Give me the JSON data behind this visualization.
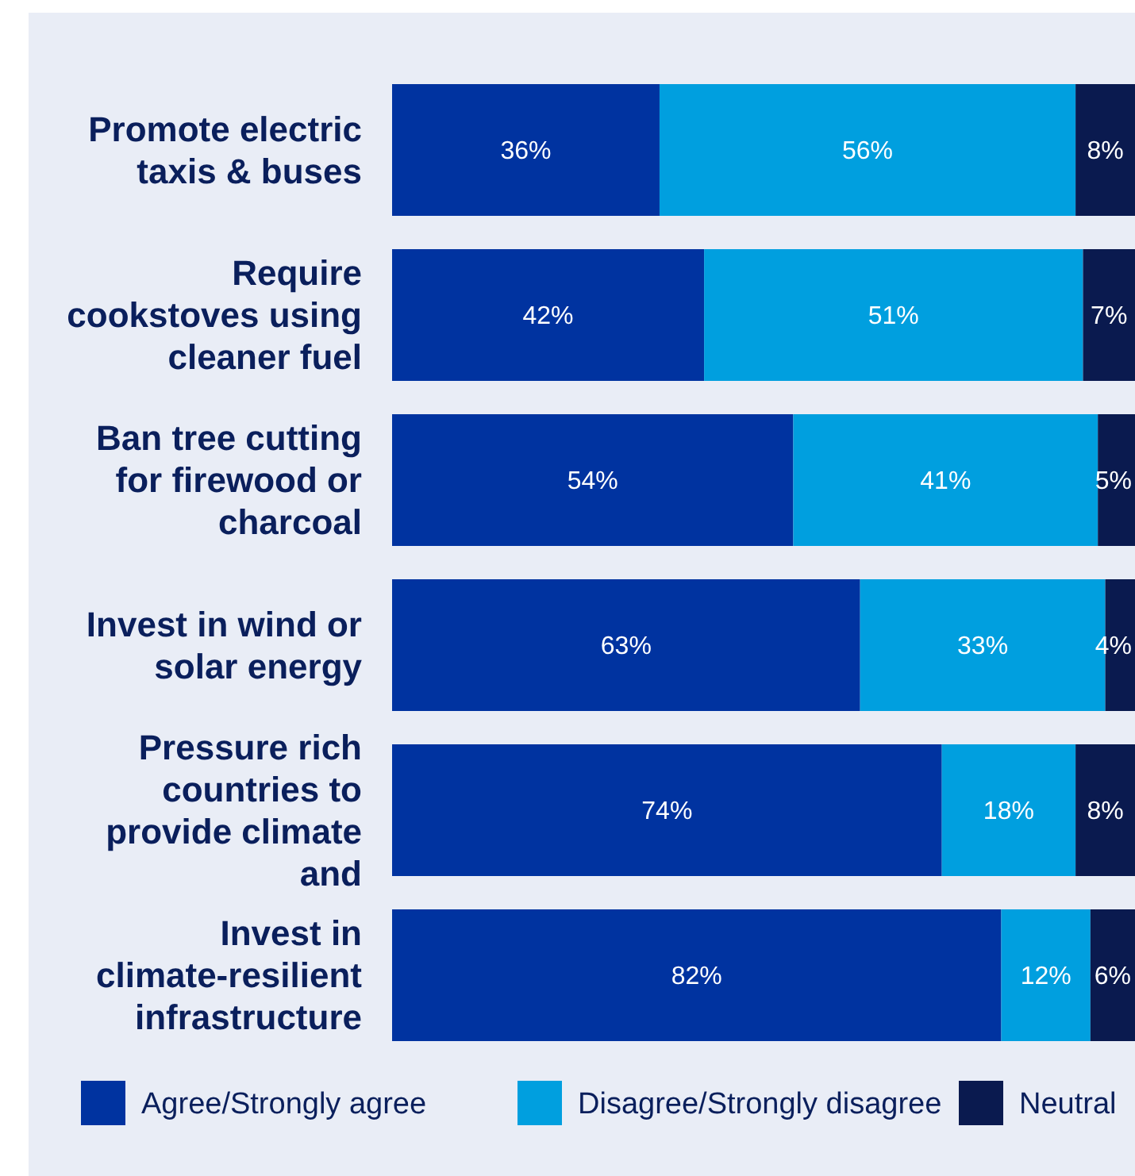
{
  "chart_data": {
    "type": "bar",
    "orientation": "horizontal",
    "stacked": true,
    "categories": [
      "Promote electric taxis & buses",
      "Require cookstoves using cleaner fuel",
      "Ban tree cutting for firewood or charcoal",
      "Invest in wind or solar energy",
      "Pressure rich countries to provide climate and",
      "Invest in climate-resilient infrastructure"
    ],
    "series": [
      {
        "name": "Agree/Strongly agree",
        "color": "#0033a0",
        "values": [
          36,
          42,
          54,
          63,
          74,
          82
        ],
        "value_labels": [
          "36%",
          "42%",
          "54%",
          "63%",
          "74%",
          "82%"
        ]
      },
      {
        "name": "Disagree/Strongly disagree",
        "color": "#009fdf",
        "values": [
          56,
          51,
          41,
          33,
          18,
          12
        ],
        "value_labels": [
          "56%",
          "51%",
          "41%",
          "33%",
          "18%",
          "12%"
        ]
      },
      {
        "name": "Neutral",
        "color": "#0a1a4f",
        "values": [
          8,
          7,
          5,
          4,
          8,
          6
        ],
        "value_labels": [
          "8%",
          "7%",
          "5%",
          "4%",
          "8%",
          "6%"
        ]
      }
    ],
    "xlim": [
      0,
      100
    ],
    "tick_labels": false,
    "legend": "bottom"
  }
}
